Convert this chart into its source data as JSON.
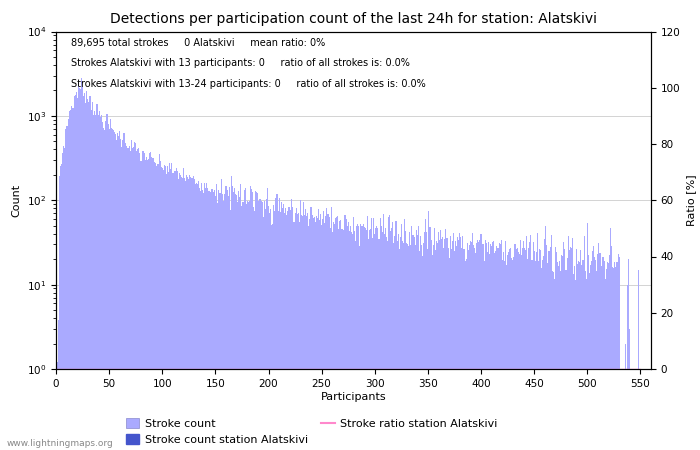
{
  "title": "Detections per participation count of the last 24h for station: Alatskivi",
  "xlabel": "Participants",
  "ylabel_left": "Count",
  "ylabel_right": "Ratio [%]",
  "annotation_lines": [
    "89,695 total strokes     0 Alatskivi     mean ratio: 0%",
    "Strokes Alatskivi with 13 participants: 0     ratio of all strokes is: 0.0%",
    "Strokes Alatskivi with 13-24 participants: 0     ratio of all strokes is: 0.0%"
  ],
  "bar_color": "#aaaaff",
  "station_bar_color": "#4455cc",
  "ratio_line_color": "#ff88cc",
  "watermark": "www.lightningmaps.org",
  "xlim": [
    0,
    560
  ],
  "ylim_log_min": 1,
  "ylim_log_max": 10000,
  "ylim_right": [
    0,
    120
  ],
  "x_ticks": [
    0,
    50,
    100,
    150,
    200,
    250,
    300,
    350,
    400,
    450,
    500,
    550
  ],
  "y_ticks_right": [
    0,
    20,
    40,
    60,
    80,
    100,
    120
  ],
  "grid_color": "#cccccc",
  "bg_color": "#ffffff",
  "title_fontsize": 10,
  "label_fontsize": 8,
  "tick_fontsize": 7.5,
  "annotation_fontsize": 7,
  "legend_fontsize": 8
}
